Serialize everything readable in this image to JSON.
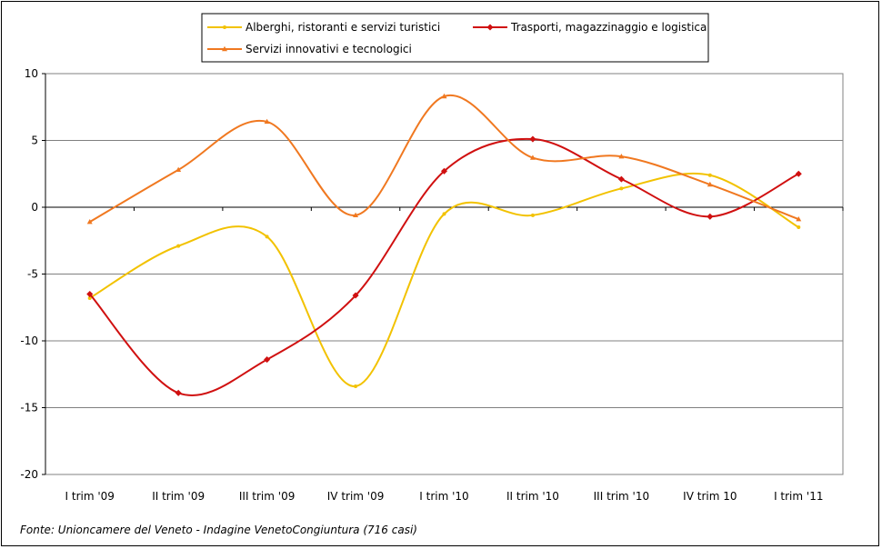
{
  "chart_data": {
    "type": "line",
    "categories": [
      "I trim '09",
      "II trim '09",
      "III trim '09",
      "IV trim '09",
      "I trim '10",
      "II trim '10",
      "III trim '10",
      "IV trim 10",
      "I trim '11"
    ],
    "series": [
      {
        "name": "Alberghi, ristoranti e servizi turistici",
        "color": "#f2c200",
        "values": [
          -6.8,
          -2.9,
          -2.2,
          -13.4,
          -0.5,
          -0.6,
          1.4,
          2.4,
          -1.5
        ]
      },
      {
        "name": "Trasporti, magazzinaggio e logistica",
        "color": "#d01010",
        "values": [
          -6.5,
          -13.9,
          -11.4,
          -6.6,
          2.7,
          5.1,
          2.1,
          -0.7,
          2.5
        ]
      },
      {
        "name": "Servizi innovativi e tecnologici",
        "color": "#f07820",
        "values": [
          -1.1,
          2.8,
          6.4,
          -0.6,
          8.3,
          3.7,
          3.8,
          1.7,
          -0.9
        ]
      }
    ],
    "ylim": [
      -20,
      10
    ],
    "yticks": [
      10,
      5,
      0,
      -5,
      -10,
      -15,
      -20
    ],
    "grid": true,
    "legend_position": "top-center",
    "source": "Fonte: Unioncamere del Veneto - Indagine VenetoCongiuntura  (716 casi)"
  }
}
